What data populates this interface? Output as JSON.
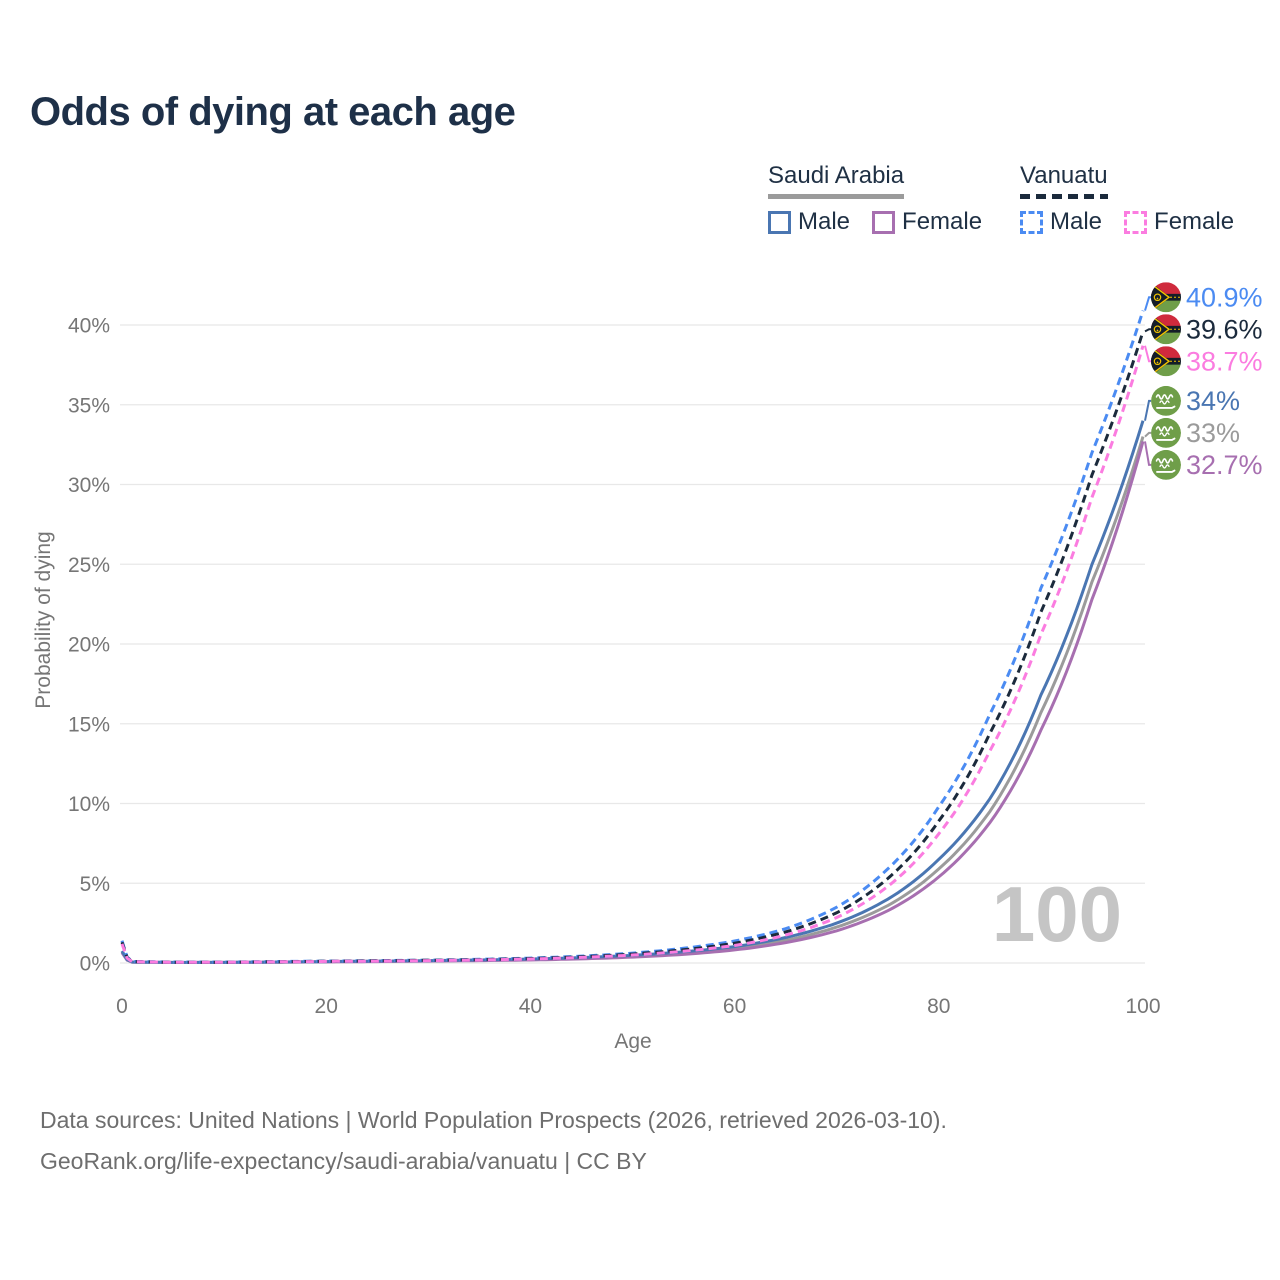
{
  "title": "Odds of dying at each age",
  "watermark": "100",
  "legend": {
    "groups": [
      {
        "name": "Saudi Arabia",
        "line_color": "#9b9b9b",
        "dashed": false,
        "items": [
          {
            "label": "Male",
            "color": "#4a76b2",
            "dashed": false
          },
          {
            "label": "Female",
            "color": "#a76fb0",
            "dashed": false
          }
        ]
      },
      {
        "name": "Vanuatu",
        "line_color": "#1b2a3c",
        "dashed": true,
        "items": [
          {
            "label": "Male",
            "color": "#4b8bf2",
            "dashed": true
          },
          {
            "label": "Female",
            "color": "#fb7ce0",
            "dashed": true
          }
        ]
      }
    ]
  },
  "chart_data": {
    "type": "line",
    "title": "Odds of dying at each age",
    "xlabel": "Age",
    "ylabel": "Probability of dying",
    "xlim": [
      0,
      100
    ],
    "ylim": [
      0,
      42
    ],
    "grid": true,
    "legend_position": "top-right",
    "xticks": [
      "0",
      "20",
      "40",
      "60",
      "80",
      "100"
    ],
    "yticks": [
      "0%",
      "5%",
      "10%",
      "15%",
      "20%",
      "25%",
      "30%",
      "35%",
      "40%"
    ],
    "x": [
      0,
      1,
      5,
      10,
      15,
      20,
      25,
      30,
      35,
      40,
      45,
      50,
      55,
      60,
      65,
      70,
      75,
      80,
      85,
      90,
      95,
      100
    ],
    "series": [
      {
        "name": "Vanuatu Male",
        "country": "Vanuatu",
        "flag": "vanuatu-flag-icon",
        "color": "#4b8bf2",
        "dashed": true,
        "end_label": "40.9%",
        "values": [
          1.4,
          0.1,
          0.06,
          0.06,
          0.09,
          0.12,
          0.15,
          0.18,
          0.23,
          0.31,
          0.43,
          0.62,
          0.92,
          1.38,
          2.15,
          3.5,
          5.9,
          9.8,
          15.6,
          23.5,
          32.0,
          40.9
        ]
      },
      {
        "name": "Vanuatu Both sexes",
        "country": "Vanuatu",
        "flag": "vanuatu-flag-icon",
        "color": "#1b2a3c",
        "dashed": true,
        "end_label": "39.6%",
        "values": [
          1.3,
          0.09,
          0.05,
          0.05,
          0.08,
          0.11,
          0.14,
          0.17,
          0.21,
          0.28,
          0.39,
          0.56,
          0.83,
          1.24,
          1.95,
          3.15,
          5.3,
          8.9,
          14.4,
          22.0,
          30.6,
          39.6
        ]
      },
      {
        "name": "Vanuatu Female",
        "country": "Vanuatu",
        "flag": "vanuatu-flag-icon",
        "color": "#fb7ce0",
        "dashed": true,
        "end_label": "38.7%",
        "values": [
          1.2,
          0.08,
          0.05,
          0.05,
          0.07,
          0.1,
          0.12,
          0.15,
          0.19,
          0.25,
          0.35,
          0.5,
          0.74,
          1.1,
          1.75,
          2.85,
          4.8,
          8.1,
          13.3,
          20.6,
          29.2,
          38.7
        ]
      },
      {
        "name": "Saudi Arabia Male",
        "country": "Saudi Arabia",
        "flag": "saudi-arabia-flag-icon",
        "color": "#4a76b2",
        "dashed": false,
        "end_label": "34%",
        "values": [
          0.75,
          0.06,
          0.04,
          0.04,
          0.06,
          0.09,
          0.12,
          0.15,
          0.19,
          0.25,
          0.34,
          0.48,
          0.7,
          1.03,
          1.6,
          2.5,
          4.0,
          6.5,
          10.3,
          16.8,
          25.0,
          34.0
        ]
      },
      {
        "name": "Saudi Arabia Both sexes",
        "country": "Saudi Arabia",
        "flag": "saudi-arabia-flag-icon",
        "color": "#9b9b9b",
        "dashed": false,
        "end_label": "33%",
        "values": [
          0.7,
          0.06,
          0.03,
          0.04,
          0.05,
          0.08,
          0.11,
          0.13,
          0.17,
          0.22,
          0.3,
          0.43,
          0.62,
          0.92,
          1.42,
          2.25,
          3.6,
          5.9,
          9.5,
          15.7,
          23.9,
          33.0
        ]
      },
      {
        "name": "Saudi Arabia Female",
        "country": "Saudi Arabia",
        "flag": "saudi-arabia-flag-icon",
        "color": "#a76fb0",
        "dashed": false,
        "end_label": "32.7%",
        "values": [
          0.65,
          0.05,
          0.03,
          0.03,
          0.05,
          0.07,
          0.09,
          0.12,
          0.15,
          0.19,
          0.26,
          0.37,
          0.54,
          0.82,
          1.28,
          2.02,
          3.28,
          5.4,
          8.8,
          14.6,
          22.8,
          32.7
        ]
      }
    ]
  },
  "flag_colors": {
    "saudi_green": "#6f9e49",
    "vanuatu_red": "#cf2a3d",
    "vanuatu_green": "#6f9e49",
    "vanuatu_black": "#141d28",
    "vanuatu_yellow": "#f2c400"
  },
  "style": {
    "grid_color": "#e8e8e8",
    "axis_text_color": "#767676",
    "watermark_color": "#c5c5c5",
    "title_color": "#1e3048"
  },
  "footer": {
    "line1": "Data sources: United Nations | World Population Prospects (2026, retrieved 2026-03-10).",
    "line2": "GeoRank.org/life-expectancy/saudi-arabia/vanuatu | CC BY"
  }
}
